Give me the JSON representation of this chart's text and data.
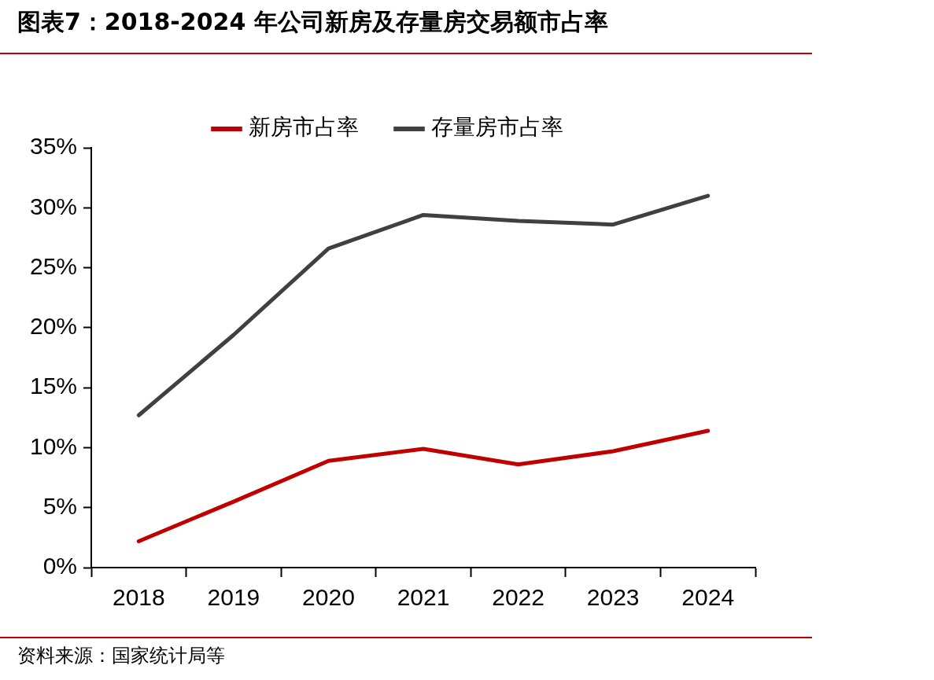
{
  "chart_data": {
    "type": "line",
    "title": "图表7：2018-2024 年公司新房及存量房交易额市占率",
    "categories": [
      "2018",
      "2019",
      "2020",
      "2021",
      "2022",
      "2023",
      "2024"
    ],
    "series": [
      {
        "name": "新房市占率",
        "color": "#c00000",
        "values": [
          2.2,
          5.5,
          8.9,
          9.9,
          8.6,
          9.7,
          11.4
        ]
      },
      {
        "name": "存量房市占率",
        "color": "#404040",
        "values": [
          12.7,
          19.4,
          26.6,
          29.4,
          28.9,
          28.6,
          31.0
        ]
      }
    ],
    "ylim": [
      0,
      35
    ],
    "yticks": [
      {
        "value": 0,
        "label": "0%"
      },
      {
        "value": 5,
        "label": "5%"
      },
      {
        "value": 10,
        "label": "10%"
      },
      {
        "value": 15,
        "label": "15%"
      },
      {
        "value": 20,
        "label": "20%"
      },
      {
        "value": 25,
        "label": "25%"
      },
      {
        "value": 30,
        "label": "30%"
      },
      {
        "value": 35,
        "label": "35%"
      }
    ],
    "grid": false,
    "legend": "top",
    "marker": "none",
    "line_style": "solid",
    "annotations": [
      "资料来源：国家统计局等"
    ]
  }
}
